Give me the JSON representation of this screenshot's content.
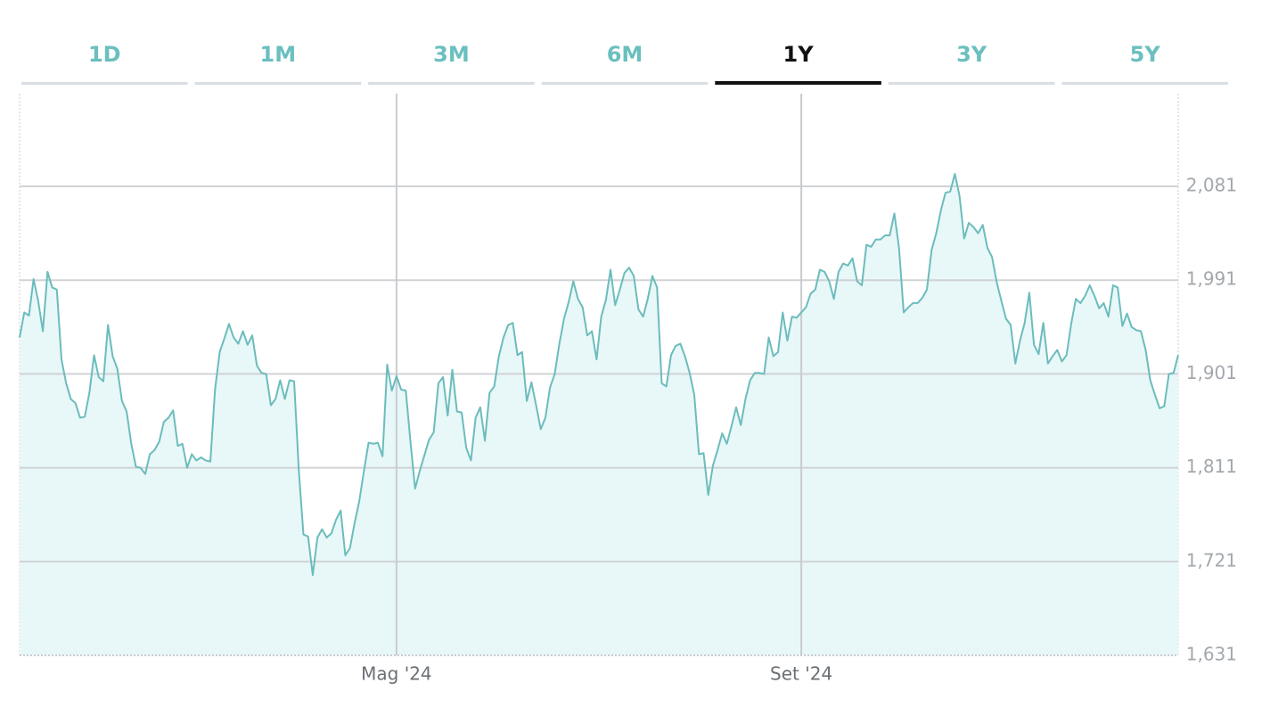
{
  "chart_data": {
    "type": "area",
    "range_buttons": [
      "1D",
      "1M",
      "3M",
      "6M",
      "1Y",
      "3Y",
      "5Y"
    ],
    "selected_range": 4,
    "color": "#6cbcbc",
    "fill_color": "#e8f7f8",
    "ylim": [
      1631,
      2170
    ],
    "yticks": [
      {
        "value": 1631,
        "label": "1,631"
      },
      {
        "value": 1721,
        "label": "1,721"
      },
      {
        "value": 1811,
        "label": "1,811"
      },
      {
        "value": 1901,
        "label": "1,901"
      },
      {
        "value": 1991,
        "label": "1,991"
      },
      {
        "value": 2081,
        "label": "2,081"
      }
    ],
    "grid": true,
    "categories": [
      null,
      null,
      null,
      null,
      null,
      null,
      null,
      null,
      null,
      null,
      null,
      null,
      null,
      null,
      null,
      null,
      null,
      null,
      null,
      null,
      null,
      null,
      null,
      null,
      null,
      null,
      null,
      null,
      null,
      null,
      null,
      null,
      null,
      null,
      null,
      null,
      null,
      null,
      null,
      null,
      null,
      null,
      null,
      null,
      null,
      null,
      null,
      null,
      null,
      null,
      null,
      null,
      null,
      null,
      null,
      null,
      null,
      null,
      null,
      null,
      null,
      null,
      null,
      null,
      null,
      null,
      null,
      null,
      null,
      null,
      null,
      null,
      null,
      null,
      null,
      null,
      null,
      null,
      null,
      null,
      null,
      "Mag '24",
      null,
      null,
      null,
      null,
      null,
      null,
      null,
      null,
      null,
      null,
      null,
      null,
      null,
      null,
      null,
      null,
      null,
      null,
      null,
      null,
      null,
      null,
      null,
      null,
      null,
      null,
      null,
      null,
      null,
      null,
      null,
      null,
      null,
      null,
      null,
      null,
      null,
      null,
      null,
      null,
      null,
      null,
      null,
      null,
      null,
      null,
      null,
      null,
      null,
      null,
      null,
      null,
      null,
      null,
      null,
      null,
      null,
      null,
      null,
      null,
      null,
      null,
      null,
      null,
      null,
      null,
      null,
      null,
      null,
      null,
      null,
      null,
      null,
      null,
      null,
      null,
      null,
      null,
      null,
      null,
      null,
      null,
      null,
      null,
      null,
      null,
      "Set '24",
      null,
      null,
      null,
      null,
      null,
      null,
      null,
      null,
      null,
      null,
      null,
      null,
      null,
      null,
      null,
      null,
      null,
      null,
      null,
      null,
      null,
      null,
      null,
      null,
      null,
      null,
      null,
      null,
      null,
      null,
      null,
      null,
      null,
      null,
      null,
      null,
      null,
      null,
      null,
      null,
      null,
      null,
      null,
      null,
      null,
      null,
      null,
      null,
      null,
      null,
      null,
      null,
      null,
      null,
      null,
      null,
      null,
      null,
      null,
      null,
      null,
      null,
      null,
      null,
      null,
      null,
      null,
      null,
      null,
      null,
      null,
      null,
      null,
      null,
      null,
      null,
      null,
      null,
      null,
      null,
      null
    ],
    "values": [
      1936,
      1960,
      1957,
      1992,
      1971,
      1942,
      1999,
      1984,
      1982,
      1915,
      1892,
      1877,
      1873,
      1859,
      1860,
      1883,
      1919,
      1898,
      1894,
      1948,
      1918,
      1906,
      1875,
      1865,
      1834,
      1812,
      1811,
      1805,
      1824,
      1828,
      1836,
      1855,
      1859,
      1866,
      1832,
      1834,
      1811,
      1824,
      1818,
      1821,
      1818,
      1817,
      1886,
      1922,
      1935,
      1949,
      1936,
      1930,
      1942,
      1929,
      1938,
      1909,
      1902,
      1901,
      1871,
      1877,
      1895,
      1877,
      1895,
      1894,
      1809,
      1747,
      1745,
      1708,
      1744,
      1752,
      1744,
      1748,
      1761,
      1770,
      1727,
      1734,
      1758,
      1779,
      1808,
      1835,
      1834,
      1835,
      1822,
      1910,
      1885,
      1899,
      1886,
      1885,
      1836,
      1791,
      1808,
      1823,
      1838,
      1845,
      1892,
      1898,
      1861,
      1905,
      1865,
      1864,
      1830,
      1818,
      1859,
      1869,
      1837,
      1883,
      1889,
      1918,
      1936,
      1948,
      1950,
      1919,
      1922,
      1875,
      1893,
      1871,
      1848,
      1859,
      1888,
      1901,
      1930,
      1954,
      1970,
      1990,
      1973,
      1965,
      1938,
      1942,
      1915,
      1956,
      1972,
      2001,
      1967,
      1982,
      1998,
      2003,
      1995,
      1963,
      1956,
      1973,
      1995,
      1984,
      1892,
      1889,
      1919,
      1928,
      1930,
      1918,
      1902,
      1881,
      1824,
      1825,
      1785,
      1813,
      1828,
      1844,
      1834,
      1851,
      1869,
      1852,
      1877,
      1895,
      1902,
      1902,
      1901,
      1936,
      1918,
      1922,
      1960,
      1933,
      1956,
      1955,
      1960,
      1965,
      1978,
      1982,
      2001,
      1999,
      1990,
      1973,
      1999,
      2007,
      2005,
      2012,
      1990,
      1986,
      2025,
      2023,
      2030,
      2030,
      2034,
      2034,
      2055,
      2022,
      1960,
      1965,
      1969,
      1969,
      1974,
      1982,
      2020,
      2036,
      2058,
      2075,
      2076,
      2093,
      2072,
      2031,
      2046,
      2042,
      2036,
      2044,
      2022,
      2013,
      1989,
      1971,
      1954,
      1948,
      1911,
      1933,
      1950,
      1979,
      1929,
      1920,
      1950,
      1911,
      1918,
      1924,
      1913,
      1919,
      1949,
      1973,
      1969,
      1976,
      1986,
      1976,
      1964,
      1969,
      1956,
      1986,
      1984,
      1947,
      1959,
      1946,
      1943,
      1942,
      1924,
      1895,
      1881,
      1868,
      1870,
      1901,
      1902,
      1919
    ]
  }
}
